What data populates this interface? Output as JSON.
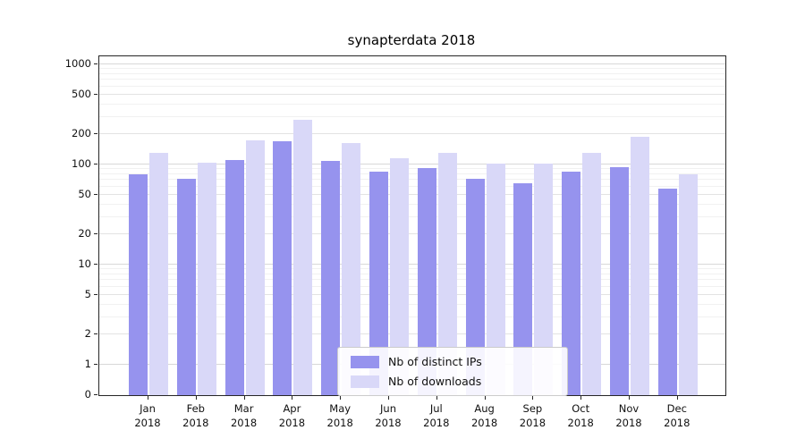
{
  "chart_data": {
    "type": "bar",
    "title": "synapterdata 2018",
    "year": "2018",
    "categories": [
      "Jan",
      "Feb",
      "Mar",
      "Apr",
      "May",
      "Jun",
      "Jul",
      "Aug",
      "Sep",
      "Oct",
      "Nov",
      "Dec"
    ],
    "series": [
      {
        "name": "Nb of distinct IPs",
        "color": "#9693ee",
        "values": [
          80,
          72,
          110,
          170,
          108,
          85,
          92,
          72,
          65,
          85,
          95,
          57
        ]
      },
      {
        "name": "Nb of downloads",
        "color": "#d9d8f8",
        "values": [
          130,
          105,
          175,
          280,
          165,
          115,
          132,
          102,
          103,
          130,
          190,
          80
        ]
      }
    ],
    "yscale": "symlog",
    "yticks": [
      0,
      1,
      2,
      5,
      10,
      20,
      50,
      100,
      200,
      500,
      1000
    ],
    "ylim": [
      0,
      1200
    ],
    "grid": true,
    "legend": {
      "position": "lower-center",
      "entries": [
        "Nb of distinct IPs",
        "Nb of downloads"
      ]
    }
  }
}
